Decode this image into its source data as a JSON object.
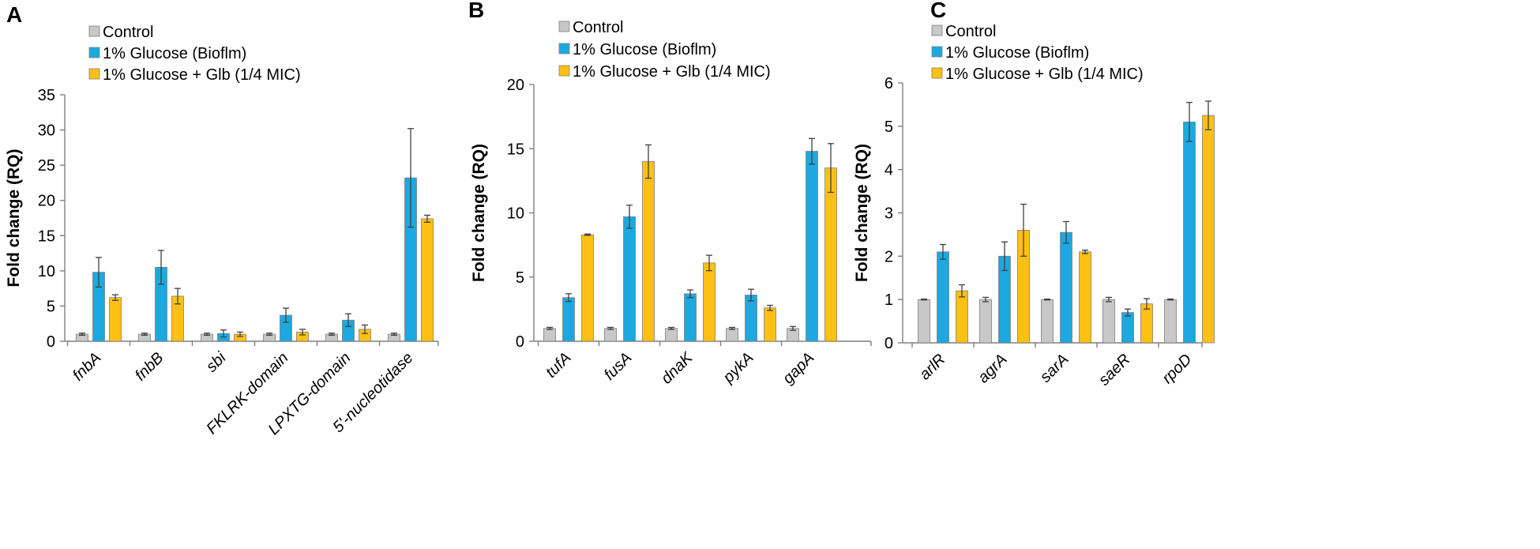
{
  "colors": {
    "control": "#c8c8c8",
    "biofilm": "#1ba9e0",
    "glb": "#fec012"
  },
  "chart_data": [
    {
      "panel": "A",
      "type": "bar",
      "ylabel": "Fold change (RQ)",
      "ylim": [
        0,
        35
      ],
      "yticks": [
        0,
        5,
        10,
        15,
        20,
        25,
        30,
        35
      ],
      "categories": [
        "fnbA",
        "fnbB",
        "sbi",
        "FKLRK-domain",
        "LPXTG-domain",
        "5'-nucleotidase"
      ],
      "legend": [
        "Control",
        "1% Glucose (Bioflm)",
        "1% Glucose + Glb (1/4 MIC)"
      ],
      "series": [
        {
          "name": "Control",
          "values": [
            1,
            1,
            1,
            1,
            1,
            1
          ],
          "errors": [
            0.15,
            0.15,
            0.15,
            0.15,
            0.15,
            0.15
          ]
        },
        {
          "name": "1% Glucose (Bioflm)",
          "values": [
            9.8,
            10.5,
            1.1,
            3.7,
            3.0,
            23.2
          ],
          "errors": [
            2.1,
            2.4,
            0.5,
            1.0,
            0.9,
            7.0
          ]
        },
        {
          "name": "1% Glucose + Glb (1/4 MIC)",
          "values": [
            6.2,
            6.4,
            1.0,
            1.3,
            1.7,
            17.4
          ],
          "errors": [
            0.4,
            1.1,
            0.3,
            0.4,
            0.6,
            0.5
          ]
        }
      ]
    },
    {
      "panel": "B",
      "type": "bar",
      "ylabel": "Fold change (RQ)",
      "ylim": [
        0,
        20
      ],
      "yticks": [
        0,
        5,
        10,
        15,
        20
      ],
      "categories": [
        "tufA",
        "fusA",
        "dnaK",
        "pykA",
        "gapA"
      ],
      "legend": [
        "Control",
        "1% Glucose (Bioflm)",
        "1% Glucose + Glb (1/4 MIC)"
      ],
      "series": [
        {
          "name": "Control",
          "values": [
            1,
            1,
            1,
            1,
            1
          ],
          "errors": [
            0.08,
            0.08,
            0.08,
            0.08,
            0.15
          ]
        },
        {
          "name": "1% Glucose (Bioflm)",
          "values": [
            3.4,
            9.7,
            3.7,
            3.6,
            14.8
          ],
          "errors": [
            0.3,
            0.9,
            0.3,
            0.45,
            1.0
          ]
        },
        {
          "name": "1% Glucose + Glb (1/4 MIC)",
          "values": [
            8.3,
            14.0,
            6.1,
            2.6,
            13.5
          ],
          "errors": [
            0.05,
            1.3,
            0.6,
            0.2,
            1.9
          ]
        }
      ]
    },
    {
      "panel": "C",
      "type": "bar",
      "ylabel": "Fold change (RQ)",
      "ylim": [
        0,
        6
      ],
      "yticks": [
        0,
        1,
        2,
        3,
        4,
        5,
        6
      ],
      "categories": [
        "arlR",
        "agrA",
        "sarA",
        "saeR",
        "rpoD"
      ],
      "legend": [
        "Control",
        "1% Glucose (Bioflm)",
        "1% Glucose + Glb (1/4 MIC)"
      ],
      "series": [
        {
          "name": "Control",
          "values": [
            1,
            1,
            1,
            1,
            1
          ],
          "errors": [
            0.01,
            0.05,
            0.01,
            0.05,
            0.01
          ]
        },
        {
          "name": "1% Glucose (Bioflm)",
          "values": [
            2.1,
            2.0,
            2.55,
            0.7,
            5.1
          ],
          "errors": [
            0.17,
            0.33,
            0.25,
            0.08,
            0.45
          ]
        },
        {
          "name": "1% Glucose + Glb (1/4 MIC)",
          "values": [
            1.2,
            2.6,
            2.1,
            0.9,
            5.25
          ],
          "errors": [
            0.14,
            0.6,
            0.04,
            0.12,
            0.33
          ]
        }
      ]
    }
  ]
}
